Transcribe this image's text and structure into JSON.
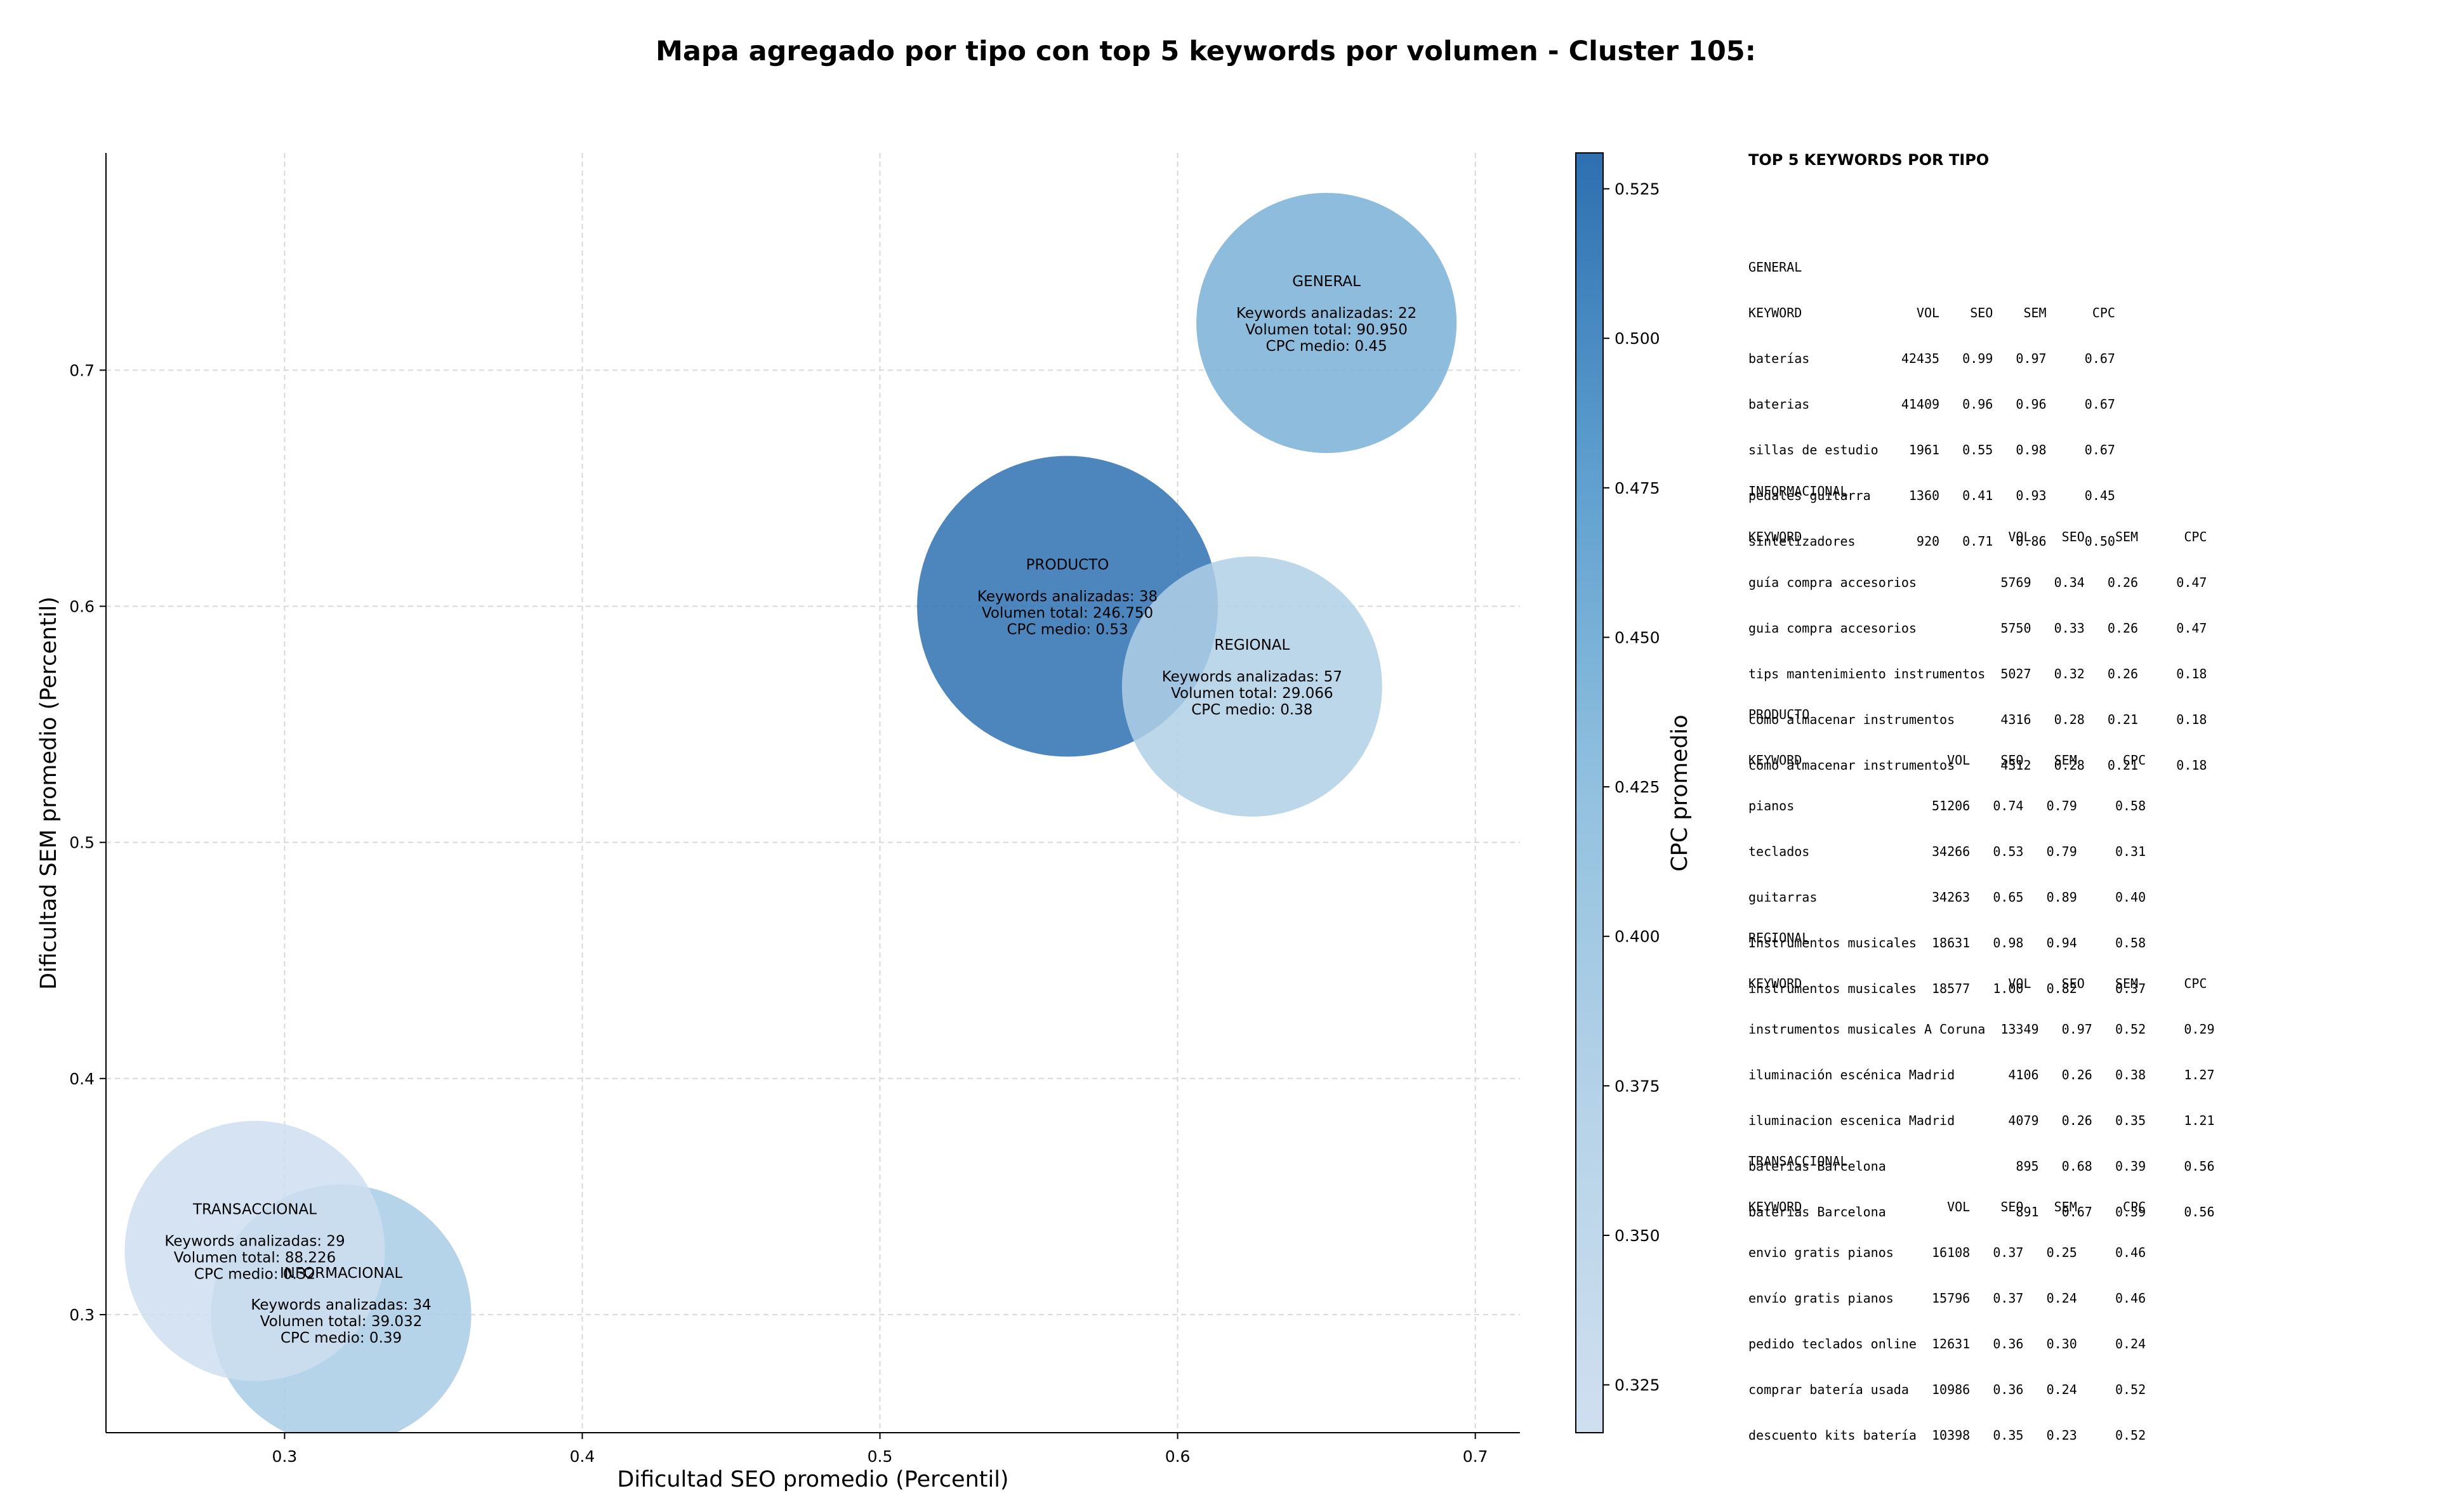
{
  "chart_data": {
    "type": "scatter",
    "title": "Mapa agregado por tipo con top 5 keywords por volumen - Cluster 105:",
    "xlabel": "Dificultad SEO promedio (Percentil)",
    "ylabel": "Dificultad SEM promedio (Percentil)",
    "xlim": [
      0.24,
      0.715
    ],
    "ylim": [
      0.25,
      0.792
    ],
    "xticks": [
      "0.3",
      "0.4",
      "0.5",
      "0.6",
      "0.7"
    ],
    "yticks": [
      "0.3",
      "0.4",
      "0.5",
      "0.6",
      "0.7"
    ],
    "grid": true,
    "colorbar": {
      "label": "CPC promedio",
      "min": 0.317,
      "max": 0.531,
      "ticks": [
        "0.325",
        "0.350",
        "0.375",
        "0.400",
        "0.425",
        "0.450",
        "0.475",
        "0.500",
        "0.525"
      ]
    },
    "points": [
      {
        "name": "GENERAL",
        "x": 0.65,
        "y": 0.72,
        "keywords_line": "Keywords analizadas: 22",
        "volume_line": "Volumen total: 90.950",
        "cpc_line": "CPC medio: 0.45",
        "volume": 90950,
        "cpc": 0.45
      },
      {
        "name": "PRODUCTO",
        "x": 0.563,
        "y": 0.6,
        "keywords_line": "Keywords analizadas: 38",
        "volume_line": "Volumen total: 246.750",
        "cpc_line": "CPC medio: 0.53",
        "volume": 246750,
        "cpc": 0.53
      },
      {
        "name": "REGIONAL",
        "x": 0.625,
        "y": 0.566,
        "keywords_line": "Keywords analizadas: 57",
        "volume_line": "Volumen total: 29.066",
        "cpc_line": "CPC medio: 0.38",
        "volume": 29066,
        "cpc": 0.38
      },
      {
        "name": "INFORMACIONAL",
        "x": 0.319,
        "y": 0.3,
        "keywords_line": "Keywords analizadas: 34",
        "volume_line": "Volumen total: 39.032",
        "cpc_line": "CPC medio: 0.39",
        "volume": 39032,
        "cpc": 0.39
      },
      {
        "name": "TRANSACCIONAL",
        "x": 0.29,
        "y": 0.327,
        "keywords_line": "Keywords analizadas: 29",
        "volume_line": "Volumen total: 88.226",
        "cpc_line": "CPC medio: 0.32",
        "volume": 88226,
        "cpc": 0.32
      }
    ]
  },
  "side_panel": {
    "title": "TOP 5 KEYWORDS POR TIPO",
    "sections": [
      {
        "lines": [
          "GENERAL",
          "KEYWORD               VOL    SEO    SEM      CPC",
          "baterías            42435   0.99   0.97     0.67",
          "baterias            41409   0.96   0.96     0.67",
          "sillas de estudio    1961   0.55   0.98     0.67",
          "pedales guitarra     1360   0.41   0.93     0.45",
          "sintetizadores        920   0.71   0.86     0.50"
        ]
      },
      {
        "lines": [
          "INFORMACIONAL",
          "KEYWORD                           VOL    SEO    SEM      CPC",
          "guía compra accesorios           5769   0.34   0.26     0.47",
          "guia compra accesorios           5750   0.33   0.26     0.47",
          "tips mantenimiento instrumentos  5027   0.32   0.26     0.18",
          "como almacenar instrumentos      4316   0.28   0.21     0.18",
          "cómo almacenar instrumentos      4312   0.28   0.21     0.18"
        ]
      },
      {
        "lines": [
          "PRODUCTO",
          "KEYWORD                   VOL    SEO    SEM      CPC",
          "pianos                  51206   0.74   0.79     0.58",
          "teclados                34266   0.53   0.79     0.31",
          "guitarras               34263   0.65   0.89     0.40",
          "Instrumentos musicales  18631   0.98   0.94     0.58",
          "instrumentos musicales  18577   1.00   0.82     0.37"
        ]
      },
      {
        "lines": [
          "REGIONAL",
          "KEYWORD                           VOL    SEO    SEM      CPC",
          "instrumentos musicales A Coruna  13349   0.97   0.52     0.29",
          "iluminación escénica Madrid       4106   0.26   0.38     1.27",
          "iluminacion escenica Madrid       4079   0.26   0.35     1.21",
          "baterias Barcelona                 895   0.68   0.39     0.56",
          "baterías Barcelona                 891   0.67   0.39     0.56"
        ]
      },
      {
        "lines": [
          "TRANSACCIONAL",
          "KEYWORD                   VOL    SEO    SEM      CPC",
          "envio gratis pianos     16108   0.37   0.25     0.46",
          "envío gratis pianos     15796   0.37   0.24     0.46",
          "pedido teclados online  12631   0.36   0.30     0.24",
          "comprar batería usada   10986   0.36   0.24     0.52",
          "descuento kits batería  10398   0.35   0.23     0.52"
        ]
      }
    ]
  }
}
